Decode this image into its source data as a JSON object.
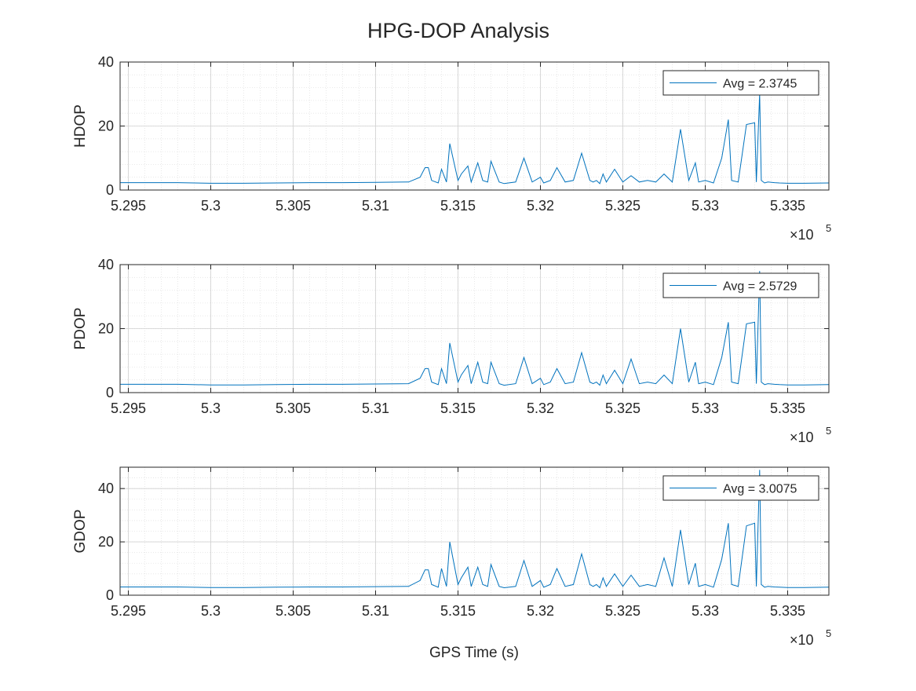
{
  "figure": {
    "title": "HPG-DOP Analysis",
    "xlabel": "GPS Time (s)"
  },
  "chart_data": [
    {
      "type": "line",
      "ylabel": "HDOP",
      "legend": {
        "label": "Avg = 2.3745",
        "placement": "top-right"
      },
      "xlim": [
        529450,
        533750
      ],
      "ylim": [
        0,
        40
      ],
      "xticks": [
        529500,
        530000,
        530500,
        531000,
        531500,
        532000,
        532500,
        533000,
        533500
      ],
      "xtick_labels": [
        "5.295",
        "5.3",
        "5.305",
        "5.31",
        "5.315",
        "5.32",
        "5.325",
        "5.33",
        "5.335"
      ],
      "x_exponent": "×10",
      "x_exponent_power": "5",
      "yticks": [
        0,
        20,
        40
      ],
      "ytick_labels": [
        "0",
        "20",
        "40"
      ],
      "grid": true,
      "minor_grid": true,
      "series": [
        {
          "name": "Avg = 2.3745",
          "color": "#0072BD",
          "x": [
            529450,
            529800,
            530000,
            530200,
            530400,
            530600,
            530800,
            531000,
            531200,
            531270,
            531300,
            531320,
            531340,
            531380,
            531400,
            531430,
            531450,
            531500,
            531520,
            531560,
            531580,
            531620,
            531650,
            531680,
            531700,
            531750,
            531780,
            531850,
            531900,
            531950,
            532000,
            532020,
            532060,
            532100,
            532150,
            532200,
            532250,
            532300,
            532320,
            532340,
            532360,
            532380,
            532400,
            532450,
            532500,
            532550,
            532600,
            532650,
            532700,
            532750,
            532800,
            532850,
            532900,
            532940,
            532960,
            533000,
            533050,
            533100,
            533140,
            533160,
            533200,
            533250,
            533300,
            533310,
            533330,
            533340,
            533360,
            533380,
            533420,
            533450,
            533500,
            533600,
            533750
          ],
          "y": [
            2.3,
            2.3,
            2.1,
            2.1,
            2.2,
            2.3,
            2.3,
            2.4,
            2.5,
            4,
            7,
            7,
            3,
            2.2,
            6.5,
            2.5,
            14.5,
            3,
            5,
            7.5,
            2.5,
            8.5,
            3,
            2.5,
            9,
            2.5,
            2,
            2.5,
            10,
            2.5,
            4,
            2.2,
            3,
            7,
            2.5,
            3,
            11.5,
            3,
            2.5,
            3,
            2,
            5,
            2.5,
            6.5,
            2.5,
            4.5,
            2.5,
            3,
            2.5,
            5,
            2.5,
            19,
            3,
            8.5,
            2.5,
            3,
            2.2,
            10,
            22,
            3,
            2.5,
            20.5,
            21,
            2.5,
            30,
            3,
            2.2,
            2.5,
            2.3,
            2.2,
            2.1,
            2.1,
            2.2
          ]
        }
      ]
    },
    {
      "type": "line",
      "ylabel": "PDOP",
      "legend": {
        "label": "Avg = 2.5729",
        "placement": "top-right"
      },
      "xlim": [
        529450,
        533750
      ],
      "ylim": [
        0,
        40
      ],
      "xticks": [
        529500,
        530000,
        530500,
        531000,
        531500,
        532000,
        532500,
        533000,
        533500
      ],
      "xtick_labels": [
        "5.295",
        "5.3",
        "5.305",
        "5.31",
        "5.315",
        "5.32",
        "5.325",
        "5.33",
        "5.335"
      ],
      "x_exponent": "×10",
      "x_exponent_power": "5",
      "yticks": [
        0,
        20,
        40
      ],
      "ytick_labels": [
        "0",
        "20",
        "40"
      ],
      "grid": true,
      "minor_grid": true,
      "series": [
        {
          "name": "Avg = 2.5729",
          "color": "#0072BD",
          "x": [
            529450,
            529800,
            530000,
            530200,
            530400,
            530600,
            530800,
            531000,
            531200,
            531270,
            531300,
            531320,
            531340,
            531380,
            531400,
            531430,
            531450,
            531500,
            531520,
            531560,
            531580,
            531620,
            531650,
            531680,
            531700,
            531750,
            531780,
            531850,
            531900,
            531950,
            532000,
            532020,
            532060,
            532100,
            532150,
            532200,
            532250,
            532300,
            532320,
            532340,
            532360,
            532380,
            532400,
            532450,
            532500,
            532550,
            532600,
            532650,
            532700,
            532750,
            532800,
            532850,
            532900,
            532940,
            532960,
            533000,
            533050,
            533100,
            533140,
            533160,
            533200,
            533250,
            533300,
            533310,
            533330,
            533340,
            533360,
            533380,
            533420,
            533450,
            533500,
            533600,
            533750
          ],
          "y": [
            2.6,
            2.6,
            2.4,
            2.4,
            2.5,
            2.6,
            2.6,
            2.7,
            2.8,
            4.5,
            7.5,
            7.5,
            3.3,
            2.5,
            7.5,
            2.8,
            15.5,
            3.3,
            5.5,
            8.5,
            2.8,
            9.5,
            3.3,
            2.8,
            9.5,
            2.8,
            2.3,
            2.8,
            11,
            2.8,
            4.5,
            2.5,
            3.3,
            7.5,
            2.8,
            3.3,
            12.5,
            3.3,
            2.8,
            3.3,
            2.3,
            5.5,
            2.8,
            7,
            2.8,
            10.5,
            2.8,
            3.3,
            2.8,
            5.5,
            2.8,
            20,
            3.3,
            9.5,
            2.8,
            3.3,
            2.5,
            11,
            22,
            3.3,
            2.8,
            21.5,
            22,
            2.8,
            38,
            3.3,
            2.5,
            2.8,
            2.6,
            2.5,
            2.4,
            2.4,
            2.5
          ]
        }
      ]
    },
    {
      "type": "line",
      "ylabel": "GDOP",
      "legend": {
        "label": "Avg = 3.0075",
        "placement": "top-right"
      },
      "xlim": [
        529450,
        533750
      ],
      "ylim": [
        0,
        48
      ],
      "xticks": [
        529500,
        530000,
        530500,
        531000,
        531500,
        532000,
        532500,
        533000,
        533500
      ],
      "xtick_labels": [
        "5.295",
        "5.3",
        "5.305",
        "5.31",
        "5.315",
        "5.32",
        "5.325",
        "5.33",
        "5.335"
      ],
      "x_exponent": "×10",
      "x_exponent_power": "5",
      "yticks": [
        0,
        20,
        40
      ],
      "ytick_labels": [
        "0",
        "20",
        "40"
      ],
      "grid": true,
      "minor_grid": true,
      "series": [
        {
          "name": "Avg = 3.0075",
          "color": "#0072BD",
          "x": [
            529450,
            529800,
            530000,
            530200,
            530400,
            530600,
            530800,
            531000,
            531200,
            531270,
            531300,
            531320,
            531340,
            531380,
            531400,
            531430,
            531450,
            531500,
            531520,
            531560,
            531580,
            531620,
            531650,
            531680,
            531700,
            531750,
            531780,
            531850,
            531900,
            531950,
            532000,
            532020,
            532060,
            532100,
            532150,
            532200,
            532250,
            532300,
            532320,
            532340,
            532360,
            532380,
            532400,
            532450,
            532500,
            532550,
            532600,
            532650,
            532700,
            532750,
            532800,
            532850,
            532900,
            532940,
            532960,
            533000,
            533050,
            533100,
            533140,
            533160,
            533200,
            533250,
            533300,
            533310,
            533330,
            533340,
            533360,
            533380,
            533420,
            533450,
            533500,
            533600,
            533750
          ],
          "y": [
            3.1,
            3.1,
            2.9,
            2.9,
            3.0,
            3.1,
            3.1,
            3.2,
            3.3,
            5.5,
            9.5,
            9.5,
            4,
            3,
            10,
            3.3,
            20,
            4,
            6.5,
            10.5,
            3.3,
            10.5,
            4,
            3.3,
            11.5,
            3.3,
            2.8,
            3.3,
            13,
            3.3,
            5.5,
            3,
            4,
            10,
            3.3,
            4,
            15.5,
            4,
            3.3,
            4,
            2.8,
            6.5,
            3.3,
            8,
            3.3,
            7.5,
            3.3,
            4,
            3.3,
            14,
            3.3,
            24.5,
            4,
            12,
            3.3,
            4,
            3,
            13.5,
            27,
            4,
            3.3,
            26,
            27,
            3.3,
            47,
            4,
            3,
            3.3,
            3.1,
            3,
            2.9,
            2.9,
            3
          ]
        }
      ]
    }
  ]
}
